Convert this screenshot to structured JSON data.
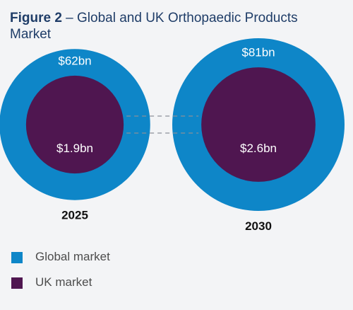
{
  "title": {
    "figure_label": "Figure 2",
    "separator": " – ",
    "text": "Global and UK Orthopaedic Products Market"
  },
  "colors": {
    "global": "#0e86c8",
    "uk": "#4f1650",
    "dash": "#8a8f99",
    "value_text": "#ffffff",
    "year_text": "#111111"
  },
  "chart_data": {
    "type": "bubble",
    "title": "Figure 2 – Global and UK Orthopaedic Products Market",
    "unit": "$bn",
    "series": [
      {
        "name": "Global market",
        "values": [
          62,
          81
        ]
      },
      {
        "name": "UK market",
        "values": [
          1.9,
          2.6
        ]
      }
    ],
    "categories": [
      "2025",
      "2030"
    ],
    "groups": [
      {
        "year": "2025",
        "global": 62,
        "global_label": "$62bn",
        "uk": 1.9,
        "uk_label": "$1.9bn"
      },
      {
        "year": "2030",
        "global": 81,
        "global_label": "$81bn",
        "uk": 2.6,
        "uk_label": "$2.6bn"
      }
    ],
    "connectors": "dashed",
    "legend_position": "bottom-left"
  },
  "legend": [
    {
      "label": "Global market",
      "color": "#0e86c8"
    },
    {
      "label": "UK market",
      "color": "#4f1650"
    }
  ]
}
